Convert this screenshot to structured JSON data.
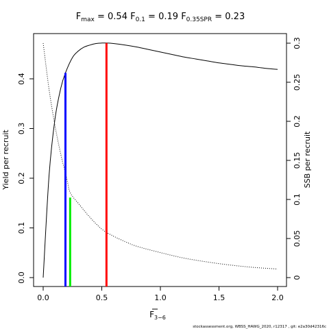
{
  "chart_data": {
    "type": "line",
    "title": {
      "fmax": {
        "symbol": "F",
        "sub": "max",
        "value": "0.54"
      },
      "f01": {
        "symbol": "F",
        "sub": "0.1",
        "value": "0.19"
      },
      "fspr": {
        "symbol": "F",
        "sub": "0.35SPR",
        "value": "0.23"
      }
    },
    "xlabel": {
      "symbol": "F",
      "sub": "3−6",
      "overline": true
    },
    "ylabel_left": "Yield per recruit",
    "ylabel_right": "SSB per recruit",
    "xlim": [
      0,
      2
    ],
    "ylim_left": [
      0,
      0.47
    ],
    "ylim_right": [
      0,
      0.3
    ],
    "x_ticks": [
      0.0,
      0.5,
      1.0,
      1.5,
      2.0
    ],
    "x_tick_labels": [
      "0.0",
      "0.5",
      "1.0",
      "1.5",
      "2.0"
    ],
    "y_left_ticks": [
      0.0,
      0.1,
      0.2,
      0.3,
      0.4
    ],
    "y_left_tick_labels": [
      "0.0",
      "0.1",
      "0.2",
      "0.3",
      "0.4"
    ],
    "y_right_ticks": [
      0,
      0.05,
      0.1,
      0.15,
      0.2,
      0.25,
      0.3
    ],
    "y_right_tick_labels": [
      "0",
      "0.05",
      "0.1",
      "0.15",
      "0.2",
      "0.25",
      "0.3"
    ],
    "series": [
      {
        "style": "solid",
        "axis": "left",
        "x": [
          0,
          0.05,
          0.1,
          0.15,
          0.19,
          0.25,
          0.3,
          0.35,
          0.4,
          0.45,
          0.5,
          0.54,
          0.6,
          0.7,
          0.8,
          0.9,
          1.0,
          1.1,
          1.2,
          1.3,
          1.4,
          1.5,
          1.6,
          1.7,
          1.8,
          1.9,
          2.0
        ],
        "y": [
          0,
          0.205,
          0.318,
          0.381,
          0.412,
          0.443,
          0.456,
          0.464,
          0.468,
          0.471,
          0.472,
          0.472,
          0.471,
          0.468,
          0.464,
          0.459,
          0.454,
          0.449,
          0.444,
          0.44,
          0.436,
          0.432,
          0.429,
          0.426,
          0.424,
          0.421,
          0.419
        ]
      },
      {
        "style": "dotted",
        "axis": "right",
        "x": [
          0,
          0.05,
          0.1,
          0.15,
          0.2,
          0.23,
          0.3,
          0.4,
          0.5,
          0.6,
          0.7,
          0.8,
          1.0,
          1.2,
          1.4,
          1.6,
          1.8,
          2.0
        ],
        "y": [
          0.3,
          0.241,
          0.195,
          0.158,
          0.128,
          0.109,
          0.095,
          0.077,
          0.062,
          0.053,
          0.046,
          0.04,
          0.032,
          0.025,
          0.02,
          0.016,
          0.013,
          0.011
        ]
      }
    ],
    "reference_lines": [
      {
        "label": "F0.1",
        "x": 0.19,
        "y_left": 0.412,
        "color": "#0000ff"
      },
      {
        "label": "F0.35SPR",
        "x": 0.23,
        "y_left": 0.161,
        "color": "#00ee00"
      },
      {
        "label": "Fmax",
        "x": 0.54,
        "y_left": 0.472,
        "color": "#ff0000"
      }
    ],
    "footnote": "stockassessment.org,  WBSS_HAWG_2020, r12317 ,  git: e2a30d42316c"
  }
}
